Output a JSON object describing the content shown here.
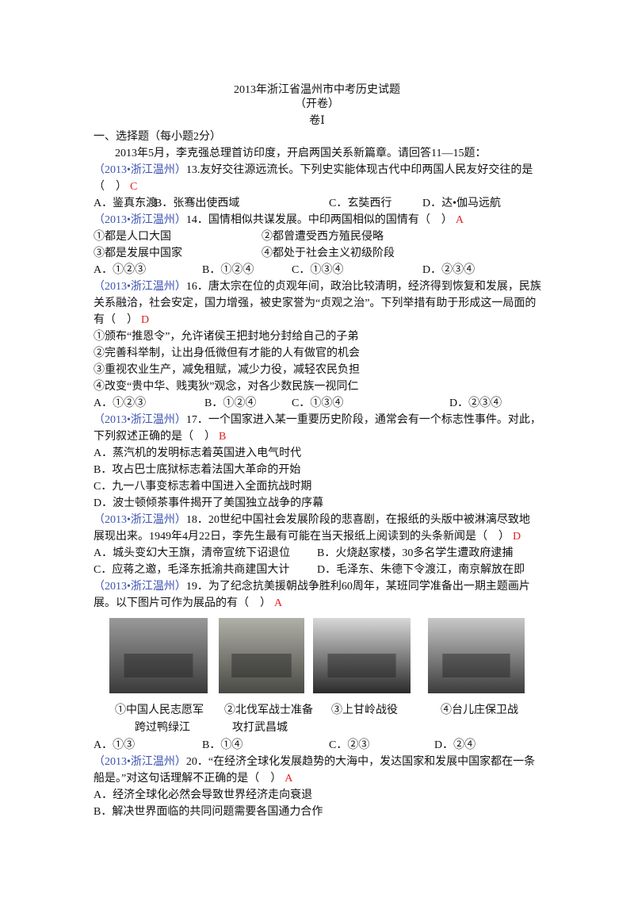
{
  "title": "2013年浙江省温州市中考历史试题",
  "subtitle": "（开卷）",
  "volume": "卷Ⅰ",
  "section": "一、选择题（每小题2分）",
  "intro": "2013年5月，李克强总理首访印度，开启两国关系新篇章。请回答11—15题：",
  "questions": [
    {
      "source": "（2013•浙江温州）",
      "stem": [
        "13.友好交往源远流长。下列史实能体现古代中印两国人民友好交往的是",
        "（    ）"
      ],
      "answer": "C",
      "options": [
        "A．鉴真东渡",
        "B．张骞出使西域",
        "C．玄奘西行",
        "D．达•伽马远航"
      ]
    },
    {
      "source": "（2013•浙江温州）",
      "stem": [
        "14．国情相似共谋发展。中印两国相似的国情有（    ）"
      ],
      "answer": "A",
      "items": [
        "①都是人口大国",
        "②都曾遭受西方殖民侵略",
        "③都是发展中国家",
        "④都处于社会主义初级阶段"
      ],
      "options": [
        "A．①②③",
        "B．①②④",
        "C．①③④",
        "D．②③④"
      ]
    },
    {
      "source": "（2013•浙江温州）",
      "stem": [
        "16．唐太宗在位的贞观年间，政治比较清明，经济得到恢复和发展，民族",
        "关系融洽，社会安定，国力增强，被史家誉为“贞观之治”。下列举措有助于形成这一局面的",
        "有（    ）"
      ],
      "answer": "D",
      "items": [
        "①颁布“推恩令”，允许诸侯王把封地分封给自己的子弟",
        "②完善科举制，让出身低微但有才能的人有做官的机会",
        "③重视农业生产，减免租赋，减少力役，减轻农民负担",
        "④改变“贵中华、贱夷狄”观念，对各少数民族一视同仁"
      ],
      "options": [
        "A．①②③",
        "B．①②④",
        "C．①③④",
        "D．②③④"
      ]
    },
    {
      "source": "（2013•浙江温州）",
      "stem": [
        "17．一个国家进入某一重要历史阶段，通常会有一个标志性事件。对此，",
        "下列叙述正确的是（    ）"
      ],
      "answer": "B",
      "options": [
        "A．蒸汽机的发明标志着英国进入电气时代",
        "B．攻占巴士底狱标志着法国大革命的开始",
        "C．九一八事变标志着中国进入全面抗战时期",
        "D．波士顿倾茶事件揭开了美国独立战争的序幕"
      ]
    },
    {
      "source": "（2013•浙江温州）",
      "stem": [
        "18．20世纪中国社会发展阶段的悲喜剧，在报纸的头版中被淋漓尽致地",
        "展现出来。1949年4月22日，李先生最有可能在当天报纸上阅读到的头条新闻是（    ）"
      ],
      "answer": "D",
      "options": [
        "A．城头变幻大王旗，清帝宣统下诏退位",
        "B．火烧赵家楼，30多名学生遭政府逮捕",
        "C．应蒋之邀，毛泽东抵渝共商建国大计",
        "D．毛泽东、朱德下令渡江，南京解放在即"
      ]
    },
    {
      "source": "（2013•浙江温州）",
      "stem": [
        "19．为了纪念抗美援朝战争胜利60周年，某班同学准备出一期主题画片",
        "展。以下图片可作为展品的有（    ）"
      ],
      "answer": "A",
      "captions": [
        [
          "①中国人民志愿军",
          "跨过鸭绿江"
        ],
        [
          "②北伐军战士准备",
          "攻打武昌城"
        ],
        [
          "③上甘岭战役"
        ],
        [
          "④台儿庄保卫战"
        ]
      ],
      "options": [
        "A．①③",
        "B．①④",
        "C．②③",
        "D．②④"
      ]
    },
    {
      "source": "（2013•浙江温州）",
      "stem": [
        "20．“在经济全球化发展趋势的大海中，发达国家和发展中国家都在一条",
        "船是。”对这句话理解不正确的是（    ）"
      ],
      "answer": "A",
      "options": [
        "A．经济全球化必然会导致世界经济走向衰退",
        "B．解决世界面临的共同问题需要各国通力合作"
      ]
    }
  ]
}
